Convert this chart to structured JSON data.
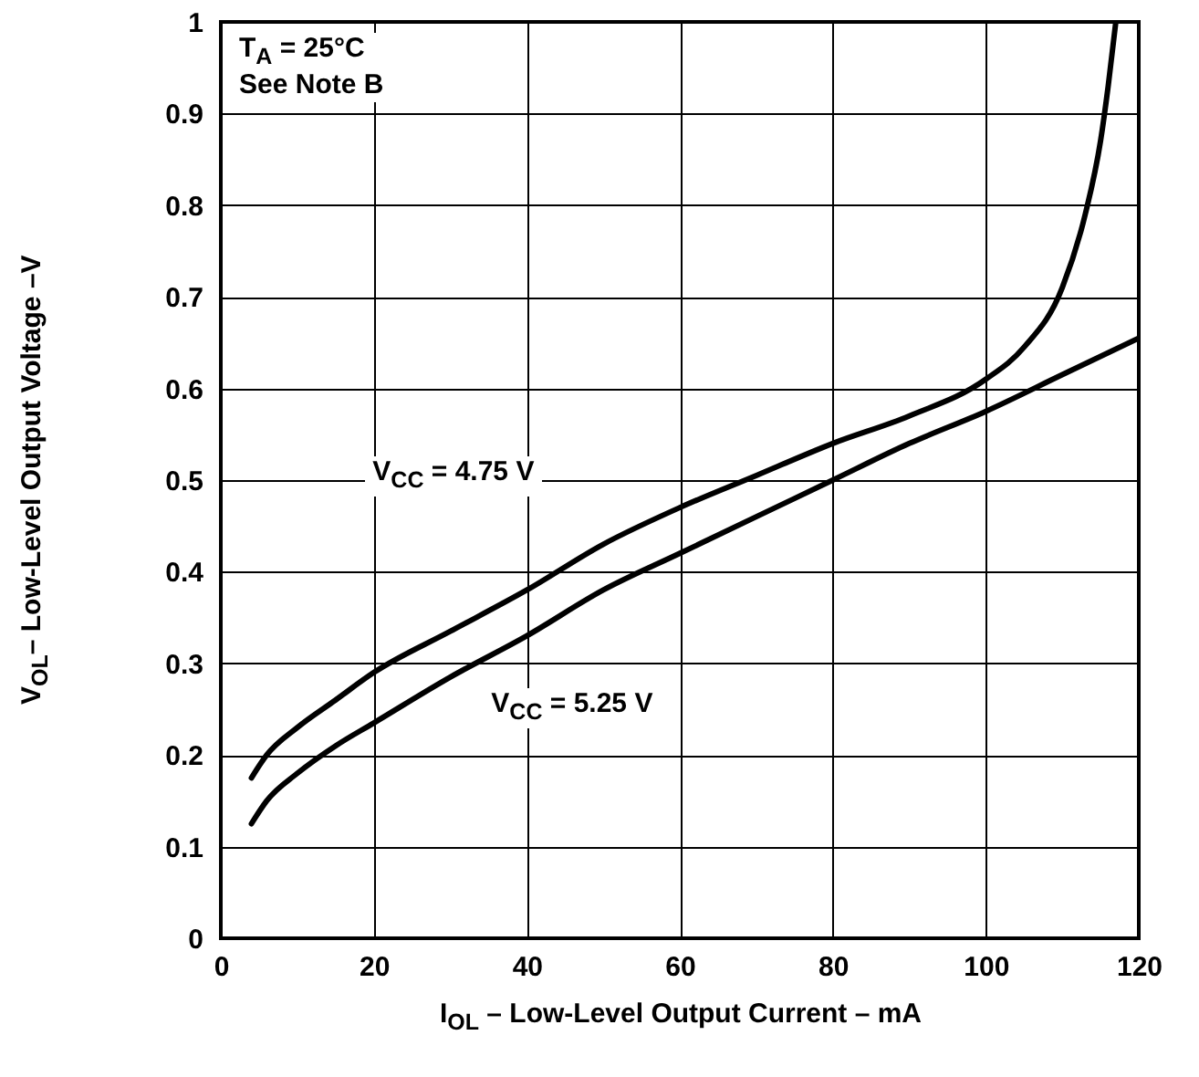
{
  "chart_data": {
    "type": "line",
    "xlabel": "I$_{OL}$ – Low-Level Output Current – mA",
    "ylabel": "V$_{OL}$– Low-Level Output Voltage –V",
    "annotations": [
      "T$_{A}$ = 25°C",
      "See Note B"
    ],
    "xlim": [
      0,
      120
    ],
    "xticks": [
      0,
      20,
      40,
      60,
      80,
      100,
      120
    ],
    "ylim": [
      0,
      1
    ],
    "yticks": [
      0,
      0.1,
      0.2,
      0.3,
      0.4,
      0.5,
      0.6,
      0.7,
      0.8,
      0.9,
      1
    ],
    "grid": true,
    "line_style": "solid",
    "series": [
      {
        "name": "V$_{CC}$ = 4.75 V",
        "color": "#000000",
        "x": [
          4,
          6,
          10,
          15,
          20,
          30,
          40,
          50,
          60,
          70,
          80,
          90,
          100,
          105,
          110,
          113,
          115,
          116,
          117
        ],
        "values": [
          0.175,
          0.2,
          0.23,
          0.26,
          0.29,
          0.335,
          0.38,
          0.43,
          0.47,
          0.505,
          0.54,
          0.57,
          0.61,
          0.645,
          0.71,
          0.79,
          0.87,
          0.93,
          1.0
        ]
      },
      {
        "name": "V$_{CC}$ = 5.25 V",
        "color": "#000000",
        "x": [
          4,
          6,
          10,
          15,
          20,
          30,
          40,
          50,
          60,
          70,
          80,
          90,
          100,
          110,
          120
        ],
        "values": [
          0.125,
          0.15,
          0.18,
          0.21,
          0.235,
          0.285,
          0.33,
          0.38,
          0.42,
          0.46,
          0.5,
          0.54,
          0.575,
          0.615,
          0.655
        ]
      }
    ]
  }
}
